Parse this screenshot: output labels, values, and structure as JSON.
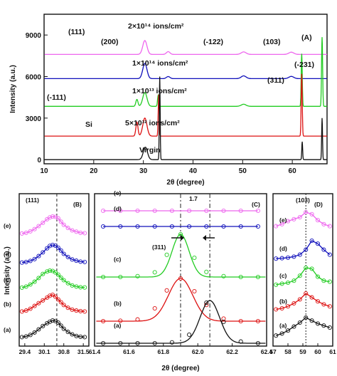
{
  "colors": {
    "pink": "#ee66ee",
    "blue": "#1010bb",
    "green": "#22cc22",
    "red": "#dd1111",
    "black": "#111111",
    "guide": "#222222"
  },
  "chart_data": [
    {
      "panel": "(A)",
      "type": "line",
      "xlabel": "2θ (degree)",
      "ylabel": "Intensity (a.u.)",
      "xlim": [
        10,
        67
      ],
      "ylim": [
        -300,
        10500
      ],
      "xticks": [
        "10",
        "20",
        "30",
        "40",
        "50",
        "60"
      ],
      "yticks": [
        "0",
        "3000",
        "6000",
        "9000"
      ],
      "series": [
        {
          "name": "2×10¹⁴ ions/cm²",
          "color": "#ee66ee",
          "baseline": 7600,
          "peaks": [
            {
              "x": 30.3,
              "h": 1000,
              "w": 0.6
            },
            {
              "x": 35.0,
              "h": 200,
              "w": 0.5
            },
            {
              "x": 50.2,
              "h": 180,
              "w": 0.7
            },
            {
              "x": 59.8,
              "h": 160,
              "w": 0.7
            }
          ]
        },
        {
          "name": "1×10¹⁴ ions/cm²",
          "color": "#1010bb",
          "baseline": 5850,
          "peaks": [
            {
              "x": 30.3,
              "h": 1100,
              "w": 0.6
            },
            {
              "x": 35.0,
              "h": 150,
              "w": 0.5
            },
            {
              "x": 50.2,
              "h": 200,
              "w": 0.7
            },
            {
              "x": 59.8,
              "h": 160,
              "w": 0.7
            }
          ]
        },
        {
          "name": "1×10¹³ ions/cm²",
          "color": "#22cc22",
          "baseline": 3850,
          "peaks": [
            {
              "x": 28.7,
              "h": 500,
              "w": 0.3
            },
            {
              "x": 30.3,
              "h": 1000,
              "w": 0.6
            },
            {
              "x": 33.0,
              "h": 800,
              "w": 0.2
            },
            {
              "x": 50.2,
              "h": 150,
              "w": 0.7
            },
            {
              "x": 61.9,
              "h": 3800,
              "w": 0.15
            },
            {
              "x": 66.0,
              "h": 5000,
              "w": 0.15
            }
          ]
        },
        {
          "name": "5×10¹² ions/cm²",
          "color": "#dd1111",
          "baseline": 1700,
          "peaks": [
            {
              "x": 28.7,
              "h": 1000,
              "w": 0.3
            },
            {
              "x": 30.3,
              "h": 1300,
              "w": 0.6
            },
            {
              "x": 33.1,
              "h": 3000,
              "w": 0.15
            },
            {
              "x": 61.9,
              "h": 4500,
              "w": 0.15
            }
          ]
        },
        {
          "name": "Virgin",
          "color": "#111111",
          "baseline": 0,
          "peaks": [
            {
              "x": 30.4,
              "h": 900,
              "w": 0.6
            },
            {
              "x": 33.3,
              "h": 6000,
              "w": 0.12
            },
            {
              "x": 62.0,
              "h": 1300,
              "w": 0.12
            },
            {
              "x": 66.0,
              "h": 3000,
              "w": 0.12
            }
          ]
        }
      ],
      "annotations": {
        "hkl_111": "(111)",
        "hkl_200": "(200)",
        "hkl_m122": "(-122)",
        "hkl_103": "(103)",
        "hkl_m231": "(-231)",
        "hkl_311": "(311)",
        "hkl_m111": "(-111)",
        "si": "Si",
        "panel": "(A)"
      }
    },
    {
      "panel": "(B)",
      "type": "line",
      "xlabel": "",
      "ylabel": "Intensity (a.u.)",
      "xlim": [
        29.2,
        31.7
      ],
      "xticks": [
        "29.4",
        "30.1",
        "30.8",
        "31.5"
      ],
      "marker_line_x": 30.55,
      "peak_label": "(111)",
      "series": [
        {
          "name": "(e)",
          "color": "#ee66ee",
          "x": [
            29.3,
            29.45,
            29.6,
            29.75,
            29.9,
            30.05,
            30.2,
            30.3,
            30.4,
            30.5,
            30.6,
            30.7,
            30.8,
            30.95,
            31.1,
            31.25,
            31.4,
            31.55
          ],
          "y": [
            0.08,
            0.12,
            0.2,
            0.32,
            0.48,
            0.66,
            0.85,
            0.95,
            1.0,
            0.98,
            0.9,
            0.72,
            0.55,
            0.38,
            0.25,
            0.18,
            0.12,
            0.1
          ]
        },
        {
          "name": "(d)",
          "color": "#1010bb",
          "x": [
            29.3,
            29.45,
            29.6,
            29.75,
            29.9,
            30.05,
            30.2,
            30.3,
            30.4,
            30.5,
            30.6,
            30.7,
            30.8,
            30.95,
            31.1,
            31.25,
            31.4,
            31.55
          ],
          "y": [
            0.05,
            0.08,
            0.14,
            0.24,
            0.4,
            0.6,
            0.82,
            0.95,
            1.0,
            0.96,
            0.85,
            0.7,
            0.52,
            0.35,
            0.22,
            0.15,
            0.1,
            0.08
          ]
        },
        {
          "name": "(c)",
          "color": "#22cc22",
          "x": [
            29.3,
            29.45,
            29.6,
            29.75,
            29.9,
            30.05,
            30.2,
            30.3,
            30.4,
            30.5,
            30.6,
            30.7,
            30.8,
            30.95,
            31.1,
            31.25,
            31.4,
            31.55
          ],
          "y": [
            0.08,
            0.14,
            0.25,
            0.4,
            0.6,
            0.82,
            0.95,
            1.0,
            0.98,
            0.9,
            0.78,
            0.62,
            0.48,
            0.32,
            0.2,
            0.14,
            0.1,
            0.09
          ]
        },
        {
          "name": "(b)",
          "color": "#dd1111",
          "x": [
            29.3,
            29.45,
            29.6,
            29.75,
            29.9,
            30.05,
            30.2,
            30.3,
            30.4,
            30.5,
            30.6,
            30.7,
            30.8,
            30.95,
            31.1,
            31.25,
            31.4,
            31.55
          ],
          "y": [
            0.1,
            0.15,
            0.25,
            0.4,
            0.55,
            0.7,
            0.85,
            0.95,
            1.0,
            0.9,
            0.75,
            0.6,
            0.45,
            0.3,
            0.2,
            0.15,
            0.12,
            0.1
          ]
        },
        {
          "name": "(a)",
          "color": "#111111",
          "x": [
            29.3,
            29.45,
            29.6,
            29.75,
            29.9,
            30.05,
            30.2,
            30.3,
            30.4,
            30.5,
            30.6,
            30.7,
            30.8,
            30.95,
            31.1,
            31.25,
            31.4,
            31.55
          ],
          "y": [
            0.1,
            0.14,
            0.22,
            0.35,
            0.52,
            0.7,
            0.85,
            0.93,
            1.0,
            0.97,
            0.88,
            0.72,
            0.55,
            0.38,
            0.25,
            0.16,
            0.12,
            0.1
          ]
        }
      ],
      "annotations": {
        "panel": "(B)"
      }
    },
    {
      "panel": "(C)",
      "type": "line",
      "xlabel": "2θ (degree)",
      "xlim": [
        61.4,
        62.4
      ],
      "xticks": [
        "61.4",
        "61.6",
        "61.8",
        "62.0",
        "62.2",
        "62.4"
      ],
      "marker_lines_x": [
        61.9,
        62.07
      ],
      "series": [
        {
          "name": "(e)",
          "color": "#ee66ee",
          "x": [
            61.45,
            61.55,
            61.65,
            61.75,
            61.85,
            61.95,
            62.05,
            62.15,
            62.25,
            62.35
          ],
          "y": [
            0,
            0,
            0,
            0,
            0,
            0,
            0,
            0,
            0,
            0
          ]
        },
        {
          "name": "(d)",
          "color": "#1010bb",
          "x": [
            61.45,
            61.55,
            61.65,
            61.75,
            61.85,
            61.95,
            62.05,
            62.15,
            62.25,
            62.35
          ],
          "y": [
            0,
            0,
            0,
            0,
            0,
            0,
            0,
            0,
            0,
            0
          ]
        },
        {
          "name": "(c)",
          "color": "#22cc22",
          "center": 61.9,
          "width": 0.07,
          "x": [
            61.45,
            61.55,
            61.65,
            61.75,
            61.82,
            61.9,
            61.98,
            62.05,
            62.15,
            62.25,
            62.35
          ],
          "y": [
            0,
            0,
            0.02,
            0.11,
            0.52,
            1.0,
            0.45,
            0.12,
            0.02,
            0,
            0
          ]
        },
        {
          "name": "(b)",
          "color": "#dd1111",
          "center": 61.9,
          "width": 0.1,
          "x": [
            61.45,
            61.55,
            61.65,
            61.75,
            61.82,
            61.9,
            61.98,
            62.05,
            62.15,
            62.25,
            62.35
          ],
          "y": [
            0,
            0.01,
            0.04,
            0.3,
            0.72,
            1.0,
            0.7,
            0.38,
            0.06,
            0,
            0
          ]
        },
        {
          "name": "(a)",
          "color": "#111111",
          "center": 62.07,
          "width": 0.08,
          "x": [
            61.45,
            61.55,
            61.65,
            61.75,
            61.85,
            61.95,
            62.05,
            62.15,
            62.25,
            62.35
          ],
          "y": [
            0,
            0,
            0,
            0,
            0.02,
            0.2,
            0.95,
            0.5,
            0.04,
            0
          ]
        }
      ],
      "annotations": {
        "panel": "(C)",
        "shift": "1.7",
        "hkl": "(311)"
      }
    },
    {
      "panel": "(D)",
      "type": "line",
      "xlabel": "",
      "xlim": [
        57,
        61
      ],
      "xticks": [
        "57",
        "58",
        "59",
        "60",
        "61"
      ],
      "marker_line_x": 59.2,
      "peak_label": "(103)",
      "series": [
        {
          "name": "(e)",
          "color": "#ee66ee",
          "x": [
            57.2,
            57.6,
            58.0,
            58.4,
            58.8,
            59.2,
            59.6,
            60.0,
            60.4,
            60.8
          ],
          "y": [
            0.3,
            0.4,
            0.55,
            0.65,
            0.75,
            1.0,
            0.9,
            0.6,
            0.4,
            0.3
          ]
        },
        {
          "name": "(d)",
          "color": "#1010bb",
          "x": [
            57.2,
            57.6,
            58.0,
            58.4,
            58.8,
            59.2,
            59.6,
            60.0,
            60.4,
            60.8
          ],
          "y": [
            0.1,
            0.12,
            0.15,
            0.2,
            0.3,
            0.55,
            1.0,
            0.85,
            0.55,
            0.3
          ]
        },
        {
          "name": "(c)",
          "color": "#22cc22",
          "x": [
            57.2,
            57.6,
            58.0,
            58.4,
            58.8,
            59.2,
            59.6,
            60.0,
            60.4,
            60.8
          ],
          "y": [
            0.15,
            0.2,
            0.25,
            0.35,
            0.6,
            1.0,
            0.95,
            0.55,
            0.35,
            0.3
          ]
        },
        {
          "name": "(b)",
          "color": "#dd1111",
          "x": [
            57.2,
            57.6,
            58.0,
            58.4,
            58.8,
            59.2,
            59.6,
            60.0,
            60.4,
            60.8
          ],
          "y": [
            0.2,
            0.25,
            0.35,
            0.5,
            0.7,
            1.0,
            0.8,
            0.6,
            0.45,
            0.35
          ]
        },
        {
          "name": "(a)",
          "color": "#111111",
          "x": [
            57.2,
            57.6,
            58.0,
            58.4,
            58.8,
            59.2,
            59.6,
            60.0,
            60.4,
            60.8
          ],
          "y": [
            0.1,
            0.2,
            0.35,
            0.55,
            0.75,
            1.0,
            0.85,
            0.7,
            0.6,
            0.5
          ]
        }
      ],
      "annotations": {
        "panel": "(D)"
      }
    }
  ]
}
